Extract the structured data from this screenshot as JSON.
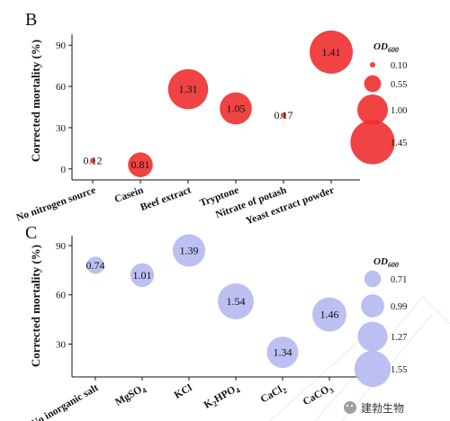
{
  "chart_data": [
    {
      "panel": "B",
      "type": "scatter",
      "variant": "bubble",
      "ylabel": "Corrected mortality (%)",
      "ylim": [
        -8,
        98
      ],
      "yticks": [
        0,
        30,
        60,
        90
      ],
      "color": "#ee2f2f",
      "categories": [
        "No nitrogen source",
        "Casein",
        "Beef extract",
        "Tryptone",
        "Nitrate of potash",
        "Yeast extract powder"
      ],
      "values": [
        6,
        3,
        58,
        44,
        39,
        85
      ],
      "sizes": [
        0.12,
        0.81,
        1.31,
        1.05,
        0.17,
        1.41
      ],
      "point_labels": [
        "0.12",
        "0.81",
        "1.31",
        "1.05",
        "0.17",
        "1.41"
      ],
      "legend": {
        "title_main": "OD",
        "title_sub": "600",
        "values": [
          0.1,
          0.55,
          1.0,
          1.45
        ],
        "labels": [
          "0.10",
          "0.55",
          "1.00",
          "1.45"
        ],
        "placement": "right"
      }
    },
    {
      "panel": "C",
      "type": "scatter",
      "variant": "bubble",
      "ylabel": "Corrected mortality (%)",
      "ylim": [
        10,
        96
      ],
      "yticks": [
        30,
        60,
        90
      ],
      "color": "#b4b8f0",
      "categories": [
        {
          "main": "No inorganic salt",
          "sub": [],
          "rest": ""
        },
        {
          "main": "MgSO",
          "sub": [
            "4"
          ],
          "rest": ""
        },
        {
          "main": "KCl",
          "sub": [],
          "rest": ""
        },
        {
          "main": "K",
          "sub": [
            "2",
            "4"
          ],
          "mid": "HPO",
          "rest": ""
        },
        {
          "main": "CaCl",
          "sub": [
            "2"
          ],
          "rest": ""
        },
        {
          "main": "CaCO",
          "sub": [
            "3"
          ],
          "rest": ""
        }
      ],
      "values": [
        78,
        72,
        87,
        56,
        25,
        48
      ],
      "sizes": [
        0.74,
        1.01,
        1.39,
        1.54,
        1.34,
        1.46
      ],
      "point_labels": [
        "0.74",
        "1.01",
        "1.39",
        "1.54",
        "1.34",
        "1.46"
      ],
      "legend": {
        "title_main": "OD",
        "title_sub": "600",
        "values": [
          0.71,
          0.99,
          1.27,
          1.55
        ],
        "labels": [
          "0.71",
          "0.99",
          "1.27",
          "1.55"
        ],
        "placement": "right"
      }
    }
  ],
  "watermark": {
    "icon": "wechat-icon",
    "text": "建勃生物"
  }
}
